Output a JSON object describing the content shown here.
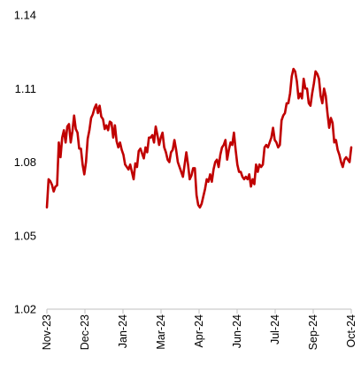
{
  "chart_data": {
    "type": "line",
    "title": "",
    "xlabel": "",
    "ylabel": "",
    "ylim": [
      1.02,
      1.14
    ],
    "yticks": [
      "1.14",
      "1.11",
      "1.08",
      "1.05",
      "1.02"
    ],
    "xticks": [
      "Nov-23",
      "Dec-23",
      "Jan-24",
      "Mar-24",
      "Apr-24",
      "Jun-24",
      "Jul-24",
      "Sep-24",
      "Oct-24"
    ],
    "grid": false,
    "legend": "none",
    "line_color": "#c00000",
    "series": [
      {
        "values": [
          1.0615,
          1.073,
          1.0722,
          1.0707,
          1.068,
          1.07,
          1.0705,
          1.088,
          1.082,
          1.09,
          1.093,
          1.088,
          1.0945,
          1.0955,
          1.088,
          1.0925,
          1.099,
          1.0935,
          1.092,
          1.0855,
          1.0855,
          1.079,
          1.075,
          1.08,
          1.0895,
          1.093,
          1.098,
          1.0995,
          1.102,
          1.1035,
          1.1,
          1.103,
          1.0985,
          1.0975,
          1.0935,
          1.095,
          1.093,
          1.0965,
          1.096,
          1.09,
          1.095,
          1.0885,
          1.086,
          1.088,
          1.085,
          1.083,
          1.079,
          1.078,
          1.077,
          1.079,
          1.076,
          1.073,
          1.0795,
          1.078,
          1.0845,
          1.0855,
          1.0835,
          1.0815,
          1.086,
          1.084,
          1.09,
          1.09,
          1.091,
          1.088,
          1.0945,
          1.091,
          1.087,
          1.09,
          1.092,
          1.086,
          1.084,
          1.081,
          1.08,
          1.084,
          1.085,
          1.089,
          1.085,
          1.08,
          1.078,
          1.076,
          1.074,
          1.079,
          1.084,
          1.079,
          1.073,
          1.0745,
          1.0775,
          1.0775,
          1.0665,
          1.0625,
          1.0615,
          1.063,
          1.066,
          1.069,
          1.073,
          1.072,
          1.075,
          1.072,
          1.077,
          1.08,
          1.081,
          1.078,
          1.083,
          1.086,
          1.087,
          1.089,
          1.081,
          1.085,
          1.088,
          1.087,
          1.092,
          1.085,
          1.079,
          1.076,
          1.076,
          1.074,
          1.073,
          1.074,
          1.073,
          1.075,
          1.07,
          1.073,
          1.071,
          1.079,
          1.076,
          1.079,
          1.078,
          1.079,
          1.086,
          1.087,
          1.086,
          1.088,
          1.09,
          1.094,
          1.089,
          1.088,
          1.086,
          1.087,
          1.097,
          1.099,
          1.1,
          1.104,
          1.104,
          1.108,
          1.115,
          1.118,
          1.117,
          1.113,
          1.106,
          1.108,
          1.106,
          1.114,
          1.11,
          1.11,
          1.104,
          1.103,
          1.108,
          1.112,
          1.117,
          1.116,
          1.114,
          1.107,
          1.104,
          1.11,
          1.107,
          1.1,
          1.094,
          1.098,
          1.096,
          1.088,
          1.089,
          1.085,
          1.083,
          1.08,
          1.078,
          1.081,
          1.082,
          1.081,
          1.08,
          1.086
        ]
      }
    ]
  }
}
